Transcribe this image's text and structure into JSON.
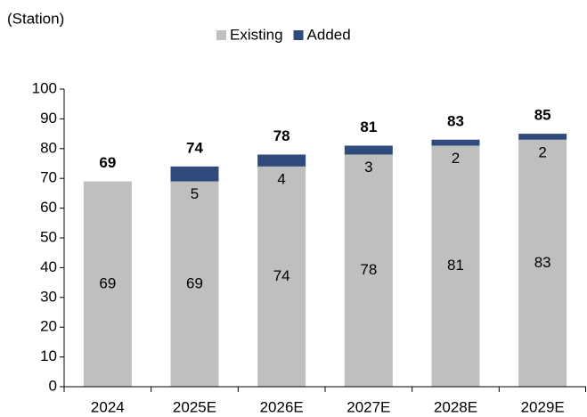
{
  "chart_data": {
    "type": "stacked_bar",
    "y_label": "(Station)",
    "categories": [
      "2024",
      "2025E",
      "2026E",
      "2027E",
      "2028E",
      "2029E"
    ],
    "series": [
      {
        "name": "Existing",
        "color": "#bfbfbf",
        "values": [
          69,
          69,
          74,
          78,
          81,
          83
        ]
      },
      {
        "name": "Added",
        "color": "#2f4b7c",
        "values": [
          null,
          5,
          4,
          3,
          2,
          2
        ]
      }
    ],
    "totals": [
      69,
      74,
      78,
      81,
      83,
      85
    ],
    "totals_color": "#1f6b7f",
    "ylim": [
      0,
      100
    ],
    "yticks": [
      0,
      10,
      20,
      30,
      40,
      50,
      60,
      70,
      80,
      90,
      100
    ],
    "legend": "top"
  }
}
